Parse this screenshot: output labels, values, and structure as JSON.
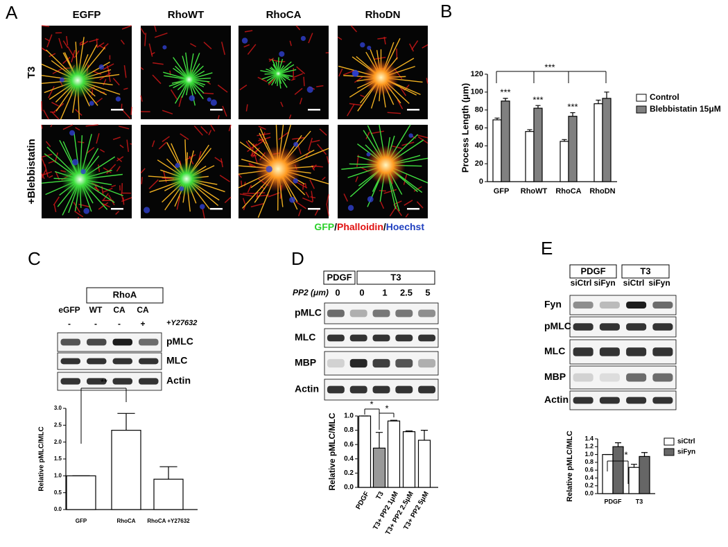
{
  "panels": {
    "A": {
      "letter": "A",
      "columns": [
        "EGFP",
        "RhoWT",
        "RhoCA",
        "RhoDN"
      ],
      "rows": [
        "T3",
        "+Blebbistatin"
      ],
      "stain_legend": [
        "GFP",
        "/",
        "Phalloidin",
        "/",
        "Hoechst"
      ]
    },
    "B": {
      "letter": "B"
    },
    "C": {
      "letter": "C",
      "group": "RhoA",
      "lanes": [
        "eGFP",
        "WT",
        "CA",
        "CA"
      ],
      "treatment": [
        "-",
        "-",
        "-",
        "+"
      ],
      "treatment_label": "+Y27632",
      "blots": [
        "pMLC",
        "MLC",
        "Actin"
      ]
    },
    "D": {
      "letter": "D",
      "groups": [
        "PDGF",
        "T3"
      ],
      "dose_label": "PP2 (μm)",
      "lanes": [
        "0",
        "0",
        "1",
        "2.5",
        "5"
      ],
      "blots": [
        "pMLC",
        "MLC",
        "MBP",
        "Actin"
      ]
    },
    "E": {
      "letter": "E",
      "groups": [
        "PDGF",
        "T3"
      ],
      "lanes": [
        "siCtrl",
        "siFyn",
        "siCtrl",
        "siFyn"
      ],
      "blots": [
        "Fyn",
        "pMLC",
        "MLC",
        "MBP",
        "Actin"
      ]
    }
  },
  "chart_data": [
    {
      "type": "bar",
      "ylabel": "Process Length (μm)",
      "categories": [
        "GFP",
        "RhoWT",
        "RhoCA",
        "RhoDN"
      ],
      "ylim": [
        0,
        120
      ],
      "yticks": [
        0,
        20,
        40,
        60,
        80,
        100,
        120
      ],
      "series": [
        {
          "name": "Control",
          "color": "#ffffff",
          "values": [
            69,
            56,
            45,
            87
          ],
          "errors": [
            2,
            2,
            2,
            4
          ]
        },
        {
          "name": "Blebbistatin 15μM",
          "color": "#808080",
          "values": [
            90,
            82,
            73,
            93
          ],
          "errors": [
            3,
            3,
            4,
            7
          ]
        }
      ],
      "annotations": [
        "***",
        "***",
        "***",
        "***"
      ]
    },
    {
      "type": "bar",
      "ylabel": "Relative pMLC/MLC",
      "categories": [
        "GFP",
        "RhoCA",
        "RhoCA +Y27632"
      ],
      "values": [
        1.0,
        2.35,
        0.9
      ],
      "errors": [
        0,
        0.5,
        0.37
      ],
      "color": "#ffffff",
      "ylim": [
        0,
        3
      ],
      "yticks": [
        {
          "value": 0,
          "label": "0.0"
        },
        0.5,
        {
          "value": 1,
          "label": "1.0"
        },
        1.5,
        {
          "value": 2,
          "label": "2.0"
        },
        2.5,
        {
          "value": 3,
          "label": "3.0"
        }
      ],
      "annotations": [
        "**"
      ]
    },
    {
      "type": "bar",
      "ylabel": "Relative pMLC/MLC",
      "categories": [
        "PDGF",
        "T3",
        "T3+ PP2 1μM",
        "T3+ PP2 2.5μM",
        "T3+ PP2 5μM"
      ],
      "values": [
        1.0,
        0.55,
        0.93,
        0.78,
        0.66
      ],
      "errors": [
        0,
        0.22,
        0.01,
        0.01,
        0.14
      ],
      "colors": [
        "#ffffff",
        "#999999",
        "#ffffff",
        "#ffffff",
        "#ffffff"
      ],
      "ylim": [
        0,
        1
      ],
      "yticks": [
        {
          "value": 0,
          "label": "0.0"
        },
        0.2,
        0.4,
        0.6,
        0.8,
        {
          "value": 1,
          "label": "1.0"
        }
      ],
      "annotations": [
        "*",
        "*"
      ]
    },
    {
      "type": "bar",
      "ylabel": "Relative pMLC/MLC",
      "categories": [
        "PDGF",
        "T3"
      ],
      "ylim": [
        0,
        1.4
      ],
      "yticks": [
        {
          "value": 0,
          "label": "0.0"
        },
        0.2,
        0.4,
        0.6,
        0.8,
        {
          "value": 1,
          "label": "1.0"
        },
        1.2,
        1.4
      ],
      "series": [
        {
          "name": "siCtrl",
          "color": "#ffffff",
          "values": [
            1.0,
            0.67
          ],
          "errors": [
            0,
            0.08
          ]
        },
        {
          "name": "siFyn",
          "color": "#666666",
          "values": [
            1.2,
            0.95
          ],
          "errors": [
            0.1,
            0.1
          ]
        }
      ],
      "annotations": [
        "*"
      ]
    }
  ]
}
